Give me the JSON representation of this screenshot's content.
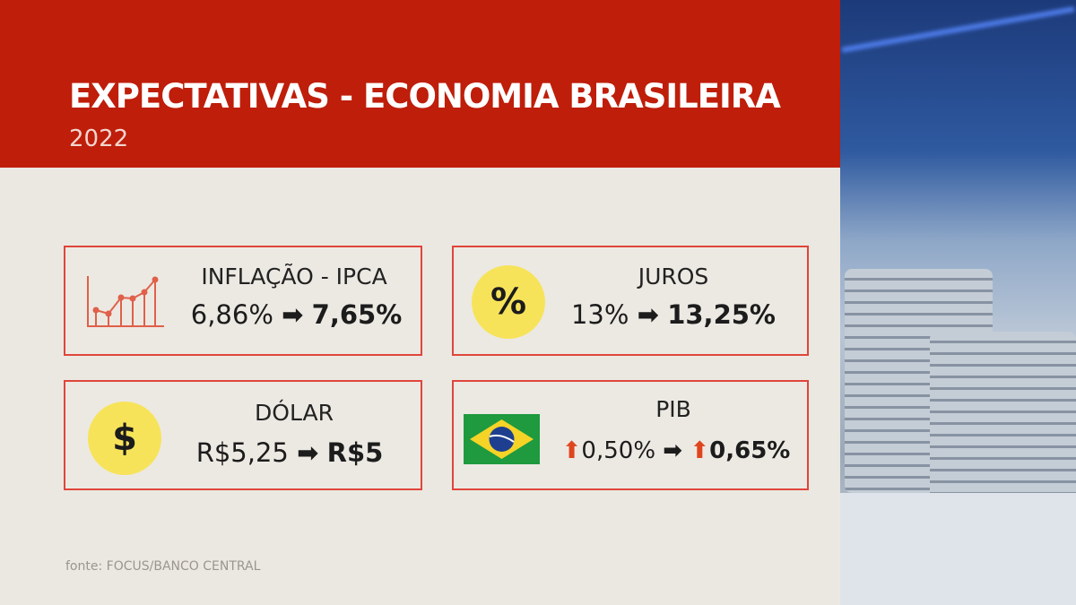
{
  "header": {
    "title": "EXPECTATIVAS - ECONOMIA BRASILEIRA",
    "year": "2022"
  },
  "cards": [
    {
      "label": "INFLAÇÃO - IPCA",
      "from": "6,86%",
      "to": "7,65%",
      "icon": "line-chart-icon"
    },
    {
      "label": "JUROS",
      "from": "13%",
      "to": "13,25%",
      "icon": "percent-icon",
      "icon_text": "%"
    },
    {
      "label": "DÓLAR",
      "from": "R$5,25",
      "to": "R$5",
      "icon": "dollar-icon",
      "icon_text": "$"
    },
    {
      "label": "PIB",
      "from": "0,50%",
      "to": "0,65%",
      "icon": "brazil-flag-icon",
      "trend": "up"
    }
  ],
  "arrow": "➡",
  "up_arrow": "⬆",
  "source": "fonte: FOCUS/BANCO CENTRAL",
  "colors": {
    "header": "#be1e0a",
    "border": "#e0453a",
    "icon_bg": "#f7e35a",
    "up": "#e0451c"
  }
}
